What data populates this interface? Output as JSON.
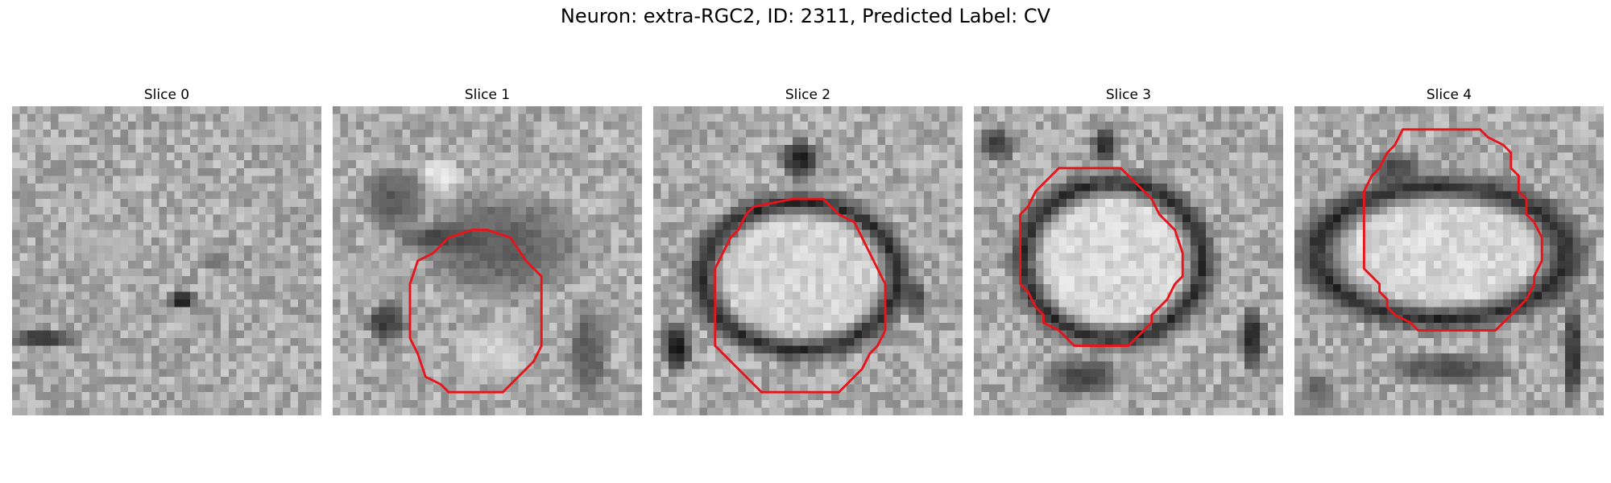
{
  "figure": {
    "title": "Neuron: extra-RGC2, ID: 2311, Predicted Label: CV"
  },
  "contour_color": "#e8141c",
  "panels": [
    {
      "title": "Slice 0",
      "blobs": [
        {
          "cx": 22,
          "cy": 25,
          "rx": 2.0,
          "ry": 1.6,
          "v": 20
        },
        {
          "cx": 26,
          "cy": 20,
          "rx": 2.2,
          "ry": 1.8,
          "v": 110
        },
        {
          "cx": 4,
          "cy": 30,
          "rx": 5.0,
          "ry": 1.6,
          "v": 55
        },
        {
          "cx": 6,
          "cy": 44,
          "rx": 2.4,
          "ry": 4.0,
          "v": 80
        },
        {
          "cx": 27,
          "cy": 45,
          "rx": 8.0,
          "ry": 3.5,
          "v": 130
        },
        {
          "cx": 12,
          "cy": 18,
          "rx": 6.0,
          "ry": 3.0,
          "v": 180
        }
      ],
      "contour": []
    },
    {
      "title": "Slice 1",
      "blobs": [
        {
          "cx": 22,
          "cy": 18,
          "rx": 12.0,
          "ry": 8.0,
          "v": 95
        },
        {
          "cx": 8,
          "cy": 12,
          "rx": 5.0,
          "ry": 5.0,
          "v": 90
        },
        {
          "cx": 14,
          "cy": 9,
          "rx": 3.0,
          "ry": 3.0,
          "v": 235
        },
        {
          "cx": 14,
          "cy": 17,
          "rx": 7.0,
          "ry": 2.0,
          "v": 75
        },
        {
          "cx": 5,
          "cy": 22,
          "rx": 4.0,
          "ry": 4.0,
          "v": 175
        },
        {
          "cx": 7,
          "cy": 28,
          "rx": 3.0,
          "ry": 3.0,
          "v": 55
        },
        {
          "cx": 21,
          "cy": 32,
          "rx": 6.0,
          "ry": 4.0,
          "v": 210
        },
        {
          "cx": 33,
          "cy": 32,
          "rx": 3.0,
          "ry": 8.0,
          "v": 90
        }
      ],
      "contour": [
        [
          20,
          16
        ],
        [
          23,
          17
        ],
        [
          25,
          20
        ],
        [
          27,
          22
        ],
        [
          27,
          31
        ],
        [
          26,
          33
        ],
        [
          25,
          34
        ],
        [
          24,
          35
        ],
        [
          23,
          36
        ],
        [
          22,
          37
        ],
        [
          15,
          37
        ],
        [
          14,
          36
        ],
        [
          12,
          35
        ],
        [
          11,
          32
        ],
        [
          10,
          30
        ],
        [
          10,
          23
        ],
        [
          11,
          20
        ],
        [
          13,
          19
        ],
        [
          15,
          17
        ],
        [
          18,
          16
        ]
      ]
    },
    {
      "title": "Slice 2",
      "ring": {
        "cx": 19,
        "cy": 22,
        "rx": 12.5,
        "ry": 9.5,
        "thick": 2.2,
        "dark": 25,
        "inner": 210
      },
      "blobs": [
        {
          "cx": 19,
          "cy": 7,
          "rx": 3.0,
          "ry": 3.0,
          "v": 30
        },
        {
          "cx": 3,
          "cy": 31,
          "rx": 2.2,
          "ry": 4.0,
          "v": 20
        },
        {
          "cx": 34,
          "cy": 25,
          "rx": 2.0,
          "ry": 3.0,
          "v": 70
        }
      ],
      "contour": [
        [
          13,
          13
        ],
        [
          18,
          12
        ],
        [
          22,
          12
        ],
        [
          24,
          14
        ],
        [
          26,
          15
        ],
        [
          27,
          17
        ],
        [
          28,
          19
        ],
        [
          29,
          21
        ],
        [
          30,
          23
        ],
        [
          30,
          29
        ],
        [
          29,
          31
        ],
        [
          28,
          32
        ],
        [
          27,
          34
        ],
        [
          26,
          35
        ],
        [
          25,
          36
        ],
        [
          24,
          37
        ],
        [
          14,
          37
        ],
        [
          13,
          36
        ],
        [
          12,
          35
        ],
        [
          11,
          34
        ],
        [
          10,
          33
        ],
        [
          9,
          32
        ],
        [
          8,
          31
        ],
        [
          8,
          26
        ],
        [
          8,
          21
        ],
        [
          9,
          19
        ],
        [
          10,
          17
        ],
        [
          11,
          16
        ],
        [
          12,
          14
        ]
      ]
    },
    {
      "title": "Slice 3",
      "ring": {
        "cx": 18,
        "cy": 20,
        "rx": 11.5,
        "ry": 10.0,
        "thick": 2.4,
        "dark": 25,
        "inner": 215
      },
      "blobs": [
        {
          "cx": 17,
          "cy": 5,
          "rx": 2.0,
          "ry": 3.0,
          "v": 40
        },
        {
          "cx": 3,
          "cy": 5,
          "rx": 3.0,
          "ry": 2.5,
          "v": 60
        },
        {
          "cx": 36,
          "cy": 30,
          "rx": 2.0,
          "ry": 5.0,
          "v": 40
        },
        {
          "cx": 14,
          "cy": 35,
          "rx": 6.0,
          "ry": 3.0,
          "v": 70
        }
      ],
      "contour": [
        [
          11,
          8
        ],
        [
          19,
          8
        ],
        [
          20,
          9
        ],
        [
          21,
          10
        ],
        [
          22,
          11
        ],
        [
          23,
          12
        ],
        [
          24,
          14
        ],
        [
          25,
          15
        ],
        [
          26,
          16
        ],
        [
          27,
          19
        ],
        [
          27,
          22
        ],
        [
          26,
          23
        ],
        [
          25,
          25
        ],
        [
          24,
          26
        ],
        [
          23,
          27
        ],
        [
          23,
          28
        ],
        [
          21,
          30
        ],
        [
          20,
          31
        ],
        [
          13,
          31
        ],
        [
          12,
          30
        ],
        [
          11,
          29
        ],
        [
          9,
          28
        ],
        [
          9,
          27
        ],
        [
          8,
          26
        ],
        [
          7,
          24
        ],
        [
          6,
          23
        ],
        [
          6,
          14
        ],
        [
          7,
          13
        ],
        [
          8,
          11
        ],
        [
          10,
          9
        ]
      ]
    },
    {
      "title": "Slice 4",
      "ring": {
        "cx": 19,
        "cy": 19,
        "rx": 16.0,
        "ry": 8.5,
        "thick": 2.4,
        "dark": 25,
        "inner": 215
      },
      "blobs": [
        {
          "cx": 13,
          "cy": 8,
          "rx": 4.0,
          "ry": 2.5,
          "v": 70
        },
        {
          "cx": 36,
          "cy": 32,
          "rx": 1.6,
          "ry": 8.0,
          "v": 40
        },
        {
          "cx": 20,
          "cy": 34,
          "rx": 10.0,
          "ry": 2.5,
          "v": 80
        },
        {
          "cx": 3,
          "cy": 37,
          "rx": 3.0,
          "ry": 3.0,
          "v": 100
        }
      ],
      "contour": [
        [
          14,
          3
        ],
        [
          24,
          3
        ],
        [
          25,
          4
        ],
        [
          27,
          5
        ],
        [
          28,
          6
        ],
        [
          28,
          8
        ],
        [
          29,
          9
        ],
        [
          29,
          11
        ],
        [
          30,
          12
        ],
        [
          30,
          14
        ],
        [
          31,
          15
        ],
        [
          32,
          17
        ],
        [
          32,
          20
        ],
        [
          31,
          22
        ],
        [
          31,
          23
        ],
        [
          30,
          25
        ],
        [
          29,
          26
        ],
        [
          28,
          27
        ],
        [
          27,
          28
        ],
        [
          26,
          29
        ],
        [
          16,
          29
        ],
        [
          15,
          28
        ],
        [
          13,
          27
        ],
        [
          12,
          26
        ],
        [
          12,
          25
        ],
        [
          11,
          24
        ],
        [
          11,
          23
        ],
        [
          10,
          22
        ],
        [
          9,
          21
        ],
        [
          9,
          20
        ],
        [
          9,
          11
        ],
        [
          10,
          9
        ],
        [
          11,
          8
        ],
        [
          12,
          6
        ],
        [
          13,
          5
        ]
      ]
    }
  ]
}
